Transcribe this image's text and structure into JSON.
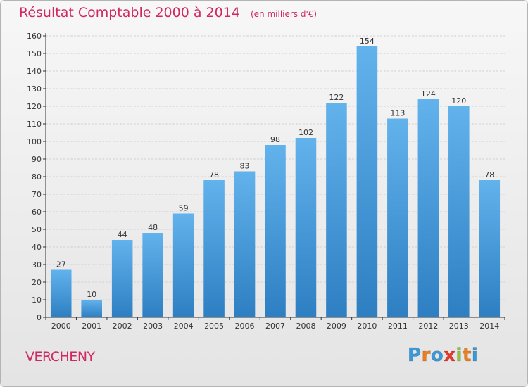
{
  "chart_data": {
    "type": "bar",
    "title": "Résultat Comptable 2000 à 2014",
    "unit_note": "(en milliers d'€)",
    "xlabel": "",
    "ylabel": "",
    "categories": [
      "2000",
      "2001",
      "2002",
      "2003",
      "2004",
      "2005",
      "2006",
      "2007",
      "2008",
      "2009",
      "2010",
      "2011",
      "2012",
      "2013",
      "2014"
    ],
    "values": [
      27,
      10,
      44,
      48,
      59,
      78,
      83,
      98,
      102,
      122,
      154,
      113,
      124,
      120,
      78
    ],
    "ylim": [
      0,
      160
    ],
    "yticks": [
      0,
      10,
      20,
      30,
      40,
      50,
      60,
      70,
      80,
      90,
      100,
      110,
      120,
      130,
      140,
      150,
      160
    ],
    "grid": true,
    "bar_color_light": "#62b2ec",
    "bar_color_dark": "#2d7fc2"
  },
  "commune": "VERCHENY",
  "logo": {
    "letters": [
      "P",
      "r",
      "o",
      "x",
      "i",
      "t",
      "i"
    ],
    "colors": [
      "#3a9ad9",
      "#f07d1a",
      "#3a9ad9",
      "#e8392a",
      "#8cc63f",
      "#f07d1a",
      "#3a9ad9"
    ]
  },
  "colors": {
    "title": "#d0285f",
    "grid": "#d2d2d2",
    "axis": "#333333"
  }
}
